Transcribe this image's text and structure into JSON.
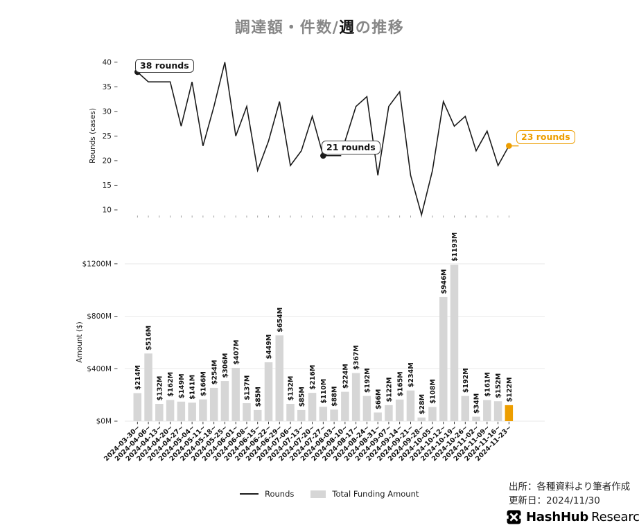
{
  "title": {
    "prefix": "調達額・件数/",
    "highlight": "週",
    "suffix": "の推移"
  },
  "legend": {
    "items": [
      {
        "label": "Rounds",
        "swatch": "line"
      },
      {
        "label": "Total Funding Amount",
        "swatch": "box"
      }
    ]
  },
  "footer": {
    "source": "出所：各種資料より筆者作成",
    "updated": "更新日：2024/11/30"
  },
  "logo": {
    "icon": "hashhub-mark",
    "bold": "HashHub",
    "regular": "Research"
  },
  "colors": {
    "accent_orange": "#ED9E00",
    "bar_gray": "#D6D6D6",
    "line_black": "#1A1A1A",
    "title_gray": "#878787",
    "grid_gray": "#EDEDED"
  },
  "chart_data": {
    "categories": [
      "2024-03-30~",
      "2024-04-06~",
      "2024-04-13~",
      "2024-04-20~",
      "2024-04-27~",
      "2024-05-04~",
      "2024-05-11~",
      "2024-05-18~",
      "2024-05-25~",
      "2024-06-01~",
      "2024-06-08~",
      "2024-06-15~",
      "2024-06-22~",
      "2024-06-29~",
      "2024-07-06~",
      "2024-07-13~",
      "2024-07-20~",
      "2024-07-27~",
      "2024-08-03~",
      "2024-08-10~",
      "2024-08-17~",
      "2024-08-24~",
      "2024-08-31~",
      "2024-09-07~",
      "2024-09-14~",
      "2024-09-21~",
      "2024-09-28~",
      "2024-10-05~",
      "2024-10-12~",
      "2024-10-19~",
      "2024-10-26~",
      "2024-11-02~",
      "2024-11-09~",
      "2024-11-16~",
      "2024-11-23~"
    ],
    "charts": [
      {
        "type": "line",
        "ylabel": "Rounds (cases)",
        "yticks": [
          40,
          35,
          30,
          25,
          20,
          15,
          10
        ],
        "ylim": [
          10,
          40
        ],
        "legend_position": "bottom",
        "grid": false,
        "series": [
          {
            "name": "Rounds",
            "values": [
              38,
              36,
              36,
              36,
              27,
              36,
              23,
              31,
              40,
              25,
              31,
              18,
              24,
              32,
              19,
              22,
              29,
              21,
              22,
              24,
              31,
              33,
              17,
              31,
              34,
              17,
              9,
              18,
              32,
              27,
              29,
              22,
              26,
              19,
              23
            ]
          }
        ],
        "annotations": [
          {
            "index": 0,
            "value": 38,
            "label": "38 rounds",
            "color": "#1A1A1A"
          },
          {
            "index": 17,
            "value": 21,
            "label": "21 rounds",
            "color": "#1A1A1A"
          },
          {
            "index": 34,
            "value": 23,
            "label": "23 rounds",
            "color": "#ED9E00"
          }
        ]
      },
      {
        "type": "bar",
        "ylabel": "Amount ($)",
        "ytick_labels": [
          "$0M",
          "$400M",
          "$800M",
          "$1200M"
        ],
        "ytick_values": [
          0,
          400,
          800,
          1200
        ],
        "ylim": [
          0,
          1300
        ],
        "grid": true,
        "series": [
          {
            "name": "Total Funding Amount",
            "values": [
              214,
              516,
              132,
              162,
              149,
              141,
              166,
              254,
              306,
              407,
              137,
              85,
              449,
              654,
              132,
              85,
              216,
              110,
              88,
              224,
              367,
              192,
              66,
              122,
              165,
              234,
              28,
              108,
              946,
              1193,
              192,
              34,
              161,
              152,
              122
            ],
            "labels": [
              "$214M",
              "$516M",
              "$132M",
              "$162M",
              "$149M",
              "$141M",
              "$166M",
              "$254M",
              "$306M",
              "$407M",
              "$137M",
              "$85M",
              "$449M",
              "$654M",
              "$132M",
              "$85M",
              "$216M",
              "$110M",
              "$88M",
              "$224M",
              "$367M",
              "$192M",
              "$66M",
              "$122M",
              "$165M",
              "$234M",
              "$28M",
              "$108M",
              "$946M",
              "$1193M",
              "$192M",
              "$34M",
              "$161M",
              "$152M",
              "$122M"
            ]
          }
        ],
        "bar_color": "#D6D6D6",
        "highlight_index": 34,
        "highlight_color": "#ED9E00"
      }
    ]
  }
}
